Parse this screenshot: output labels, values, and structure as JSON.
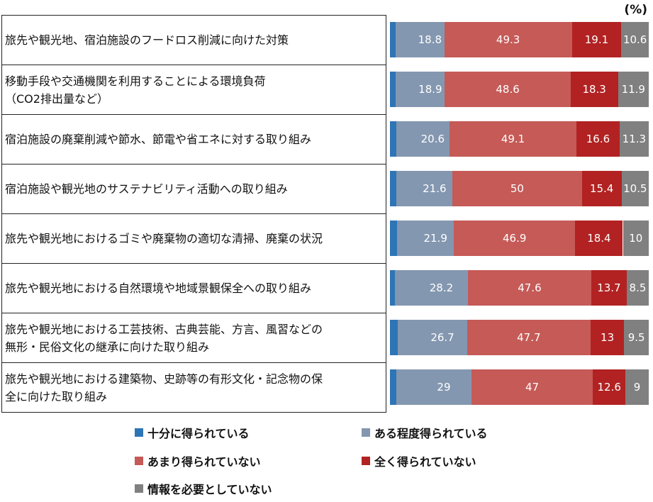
{
  "chart_data": {
    "type": "bar",
    "orientation": "horizontal",
    "stacked": true,
    "unit_label": "(%)",
    "categories": [
      "旅先や観光地、宿泊施設のフードロス削減に向けた対策",
      "移動手段や交通機関を利用することによる環境負荷（CO2排出量など）",
      "宿泊施設の廃棄削減や節水、節電や省エネに対する取り組み",
      "宿泊施設や観光地のサステナビリティ活動への取り組み",
      "旅先や観光地におけるゴミや廃棄物の適切な清掃、廃棄の状況",
      "旅先や観光地における自然環境や地域景観保全への取り組み",
      "旅先や観光地における工芸技術、古典芸能、方言、風習などの無形・民俗文化の継承に向けた取り組み",
      "旅先や観光地における建築物、史跡等の有形文化・記念物の保全に向けた取り組み"
    ],
    "category_lines": [
      [
        "旅先や観光地、宿泊施設のフードロス削減に向けた対策"
      ],
      [
        "移動手段や交通機関を利用することによる環境負荷",
        "（CO2排出量など）"
      ],
      [
        "宿泊施設の廃棄削減や節水、節電や省エネに対する取り組み"
      ],
      [
        "宿泊施設や観光地のサステナビリティ活動への取り組み"
      ],
      [
        "旅先や観光地におけるゴミや廃棄物の適切な清掃、廃棄の状況"
      ],
      [
        "旅先や観光地における自然環境や地域景観保全への取り組み"
      ],
      [
        "旅先や観光地における工芸技術、古典芸能、方言、風習などの",
        "無形・民俗文化の継承に向けた取り組み"
      ],
      [
        "旅先や観光地における建築物、史跡等の有形文化・記念物の保",
        "全に向けた取り組み"
      ]
    ],
    "series": [
      {
        "name": "十分に得られている",
        "color": "#2e75b6",
        "values": [
          2.2,
          2.3,
          2.4,
          2.6,
          2.8,
          1.9,
          3.1,
          2.5
        ]
      },
      {
        "name": "ある程度得られている",
        "color": "#8497b0",
        "values": [
          18.8,
          18.9,
          20.6,
          21.6,
          21.9,
          28.2,
          26.7,
          29
        ]
      },
      {
        "name": "あまり得られていない",
        "color": "#c55a57",
        "values": [
          49.3,
          48.6,
          49.1,
          50,
          46.9,
          47.6,
          47.7,
          47
        ]
      },
      {
        "name": "全く得られていない",
        "color": "#b22222",
        "values": [
          19.1,
          18.3,
          16.6,
          15.4,
          18.4,
          13.7,
          13,
          12.6
        ]
      },
      {
        "name": "情報を必要としていない",
        "color": "#808080",
        "values": [
          10.6,
          11.9,
          11.3,
          10.5,
          10,
          8.5,
          9.5,
          9
        ]
      }
    ],
    "xlim": [
      0,
      100
    ],
    "legend_position": "bottom"
  }
}
